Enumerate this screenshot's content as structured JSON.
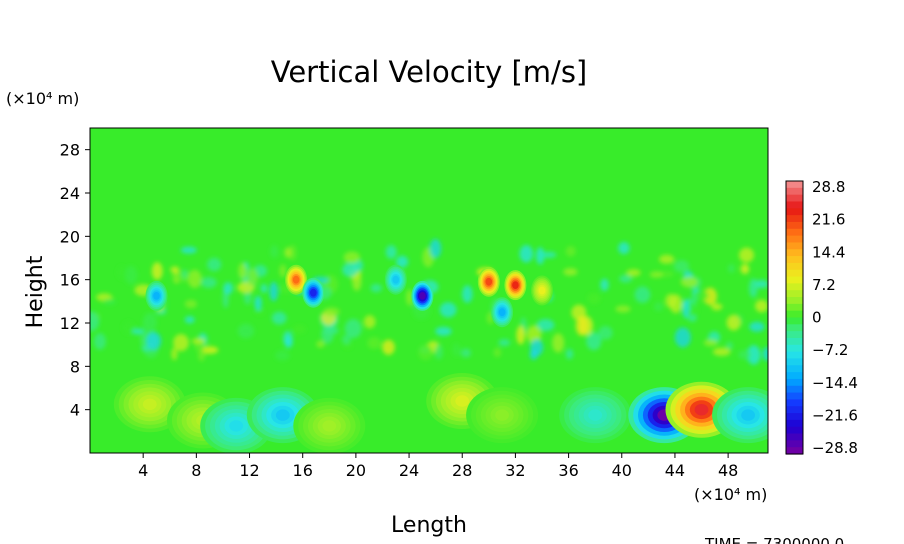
{
  "chart_data": {
    "type": "heatmap",
    "title": "Vertical Velocity [m/s]",
    "xlabel": "Length",
    "ylabel": "Height",
    "x_units": "(×10⁴ m)",
    "y_units": "(×10⁴ m)",
    "xlim": [
      0,
      51
    ],
    "ylim": [
      0,
      30
    ],
    "x_ticks": [
      "4",
      "8",
      "12",
      "16",
      "20",
      "24",
      "28",
      "32",
      "36",
      "40",
      "44",
      "48"
    ],
    "y_ticks": [
      "4",
      "8",
      "12",
      "16",
      "20",
      "24",
      "28"
    ],
    "colorbar": {
      "min": -28.8,
      "max": 28.8,
      "labels": [
        "28.8",
        "21.6",
        "14.4",
        "7.2",
        "0",
        "−7.2",
        "−14.4",
        "−21.6",
        "−28.8"
      ]
    },
    "grid": false,
    "features": [
      {
        "x": 4.5,
        "y": 4.5,
        "value": 6
      },
      {
        "x": 8.5,
        "y": 3.0,
        "value": 5
      },
      {
        "x": 11,
        "y": 2.5,
        "value": -8
      },
      {
        "x": 14.5,
        "y": 3.5,
        "value": -10
      },
      {
        "x": 18,
        "y": 2.5,
        "value": 4
      },
      {
        "x": 28,
        "y": 4.8,
        "value": 7
      },
      {
        "x": 31,
        "y": 3.5,
        "value": 3
      },
      {
        "x": 38,
        "y": 3.5,
        "value": -6
      },
      {
        "x": 43.2,
        "y": 3.5,
        "value": -28
      },
      {
        "x": 46,
        "y": 4.0,
        "value": 24
      },
      {
        "x": 49.5,
        "y": 3.5,
        "value": -10
      },
      {
        "x": 15.5,
        "y": 16.0,
        "value": 18
      },
      {
        "x": 16.8,
        "y": 14.8,
        "value": -20
      },
      {
        "x": 25,
        "y": 14.5,
        "value": -26
      },
      {
        "x": 30,
        "y": 15.8,
        "value": 20
      },
      {
        "x": 32,
        "y": 15.5,
        "value": 22
      },
      {
        "x": 31,
        "y": 13.0,
        "value": -12
      },
      {
        "x": 5,
        "y": 14.5,
        "value": -12
      },
      {
        "x": 23,
        "y": 16.0,
        "value": -10
      },
      {
        "x": 34,
        "y": 15.0,
        "value": 8
      }
    ]
  },
  "footer": {
    "time_label": "TIME = 7300000.0"
  }
}
